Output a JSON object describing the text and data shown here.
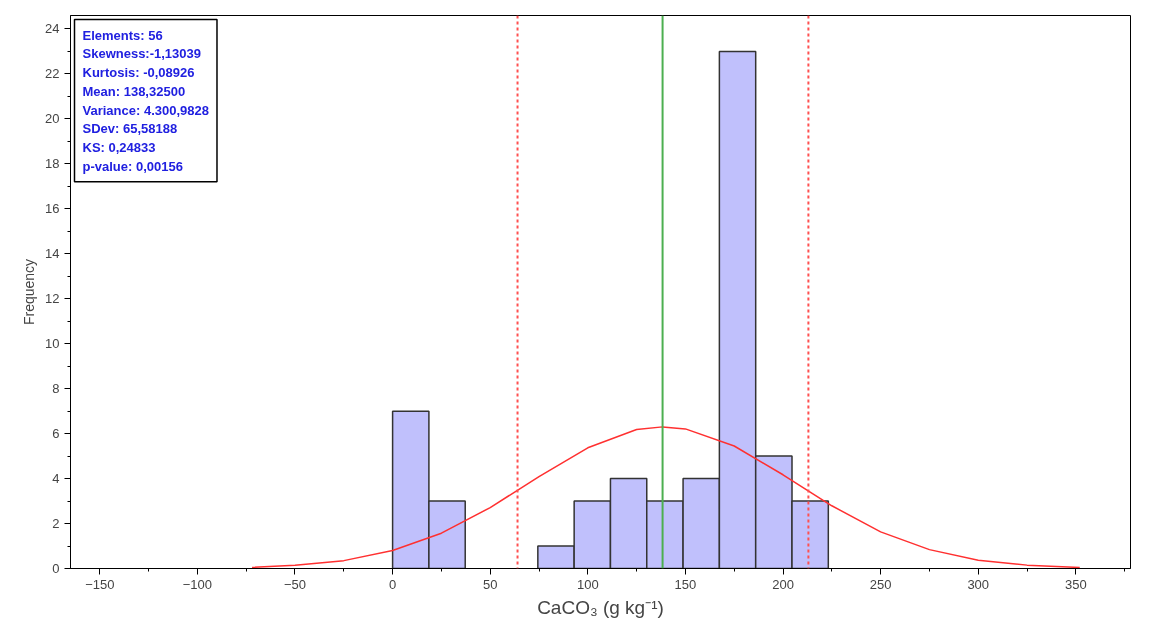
{
  "chart_data": {
    "type": "histogram",
    "xlabel": "CaCO₃ (g kg⁻¹)",
    "ylabel": "Frequency",
    "bins": [
      0,
      18.6,
      37.2,
      55.8,
      74.4,
      93,
      111.6,
      130.2,
      148.8,
      167.4,
      186,
      204.6,
      223.2
    ],
    "values": [
      7,
      3,
      0,
      0,
      1,
      3,
      4,
      3,
      4,
      23,
      5,
      3
    ],
    "color": "#c0c0fc",
    "series": [
      {
        "type": "line",
        "color": "#ff3030",
        "x": [
          -72,
          -50,
          -25,
          0,
          25,
          50,
          75,
          100,
          125,
          138.3,
          150,
          175,
          200,
          225,
          250,
          275,
          300,
          325,
          352
        ],
        "values": [
          0.05,
          0.14,
          0.35,
          0.8,
          1.57,
          2.71,
          4.09,
          5.37,
          6.18,
          6.3,
          6.21,
          5.45,
          4.17,
          2.79,
          1.63,
          0.84,
          0.37,
          0.15,
          0.05
        ]
      }
    ],
    "xlim": [
      -165,
      378
    ],
    "ylim": [
      0,
      24.6
    ],
    "xticks": [
      -150,
      {
        "value": -125,
        "label": null
      },
      -100,
      {
        "value": -75,
        "label": null
      },
      -50,
      {
        "value": -25,
        "label": null
      },
      0,
      {
        "value": 25,
        "label": null
      },
      50,
      {
        "value": 75,
        "label": null
      },
      100,
      {
        "value": 125,
        "label": null
      },
      150,
      {
        "value": 175,
        "label": null
      },
      200,
      {
        "value": 225,
        "label": null
      },
      250,
      {
        "value": 275,
        "label": null
      },
      300,
      {
        "value": 325,
        "label": null
      },
      350,
      {
        "value": 375,
        "label": null
      }
    ],
    "yticks": [
      0,
      {
        "value": 1,
        "label": null
      },
      2,
      {
        "value": 3,
        "label": null
      },
      4,
      {
        "value": 5,
        "label": null
      },
      6,
      {
        "value": 7,
        "label": null
      },
      8,
      {
        "value": 9,
        "label": null
      },
      10,
      {
        "value": 11,
        "label": null
      },
      12,
      {
        "value": 13,
        "label": null
      },
      14,
      {
        "value": 15,
        "label": null
      },
      16,
      {
        "value": 17,
        "label": null
      },
      18,
      {
        "value": 19,
        "label": null
      },
      20,
      {
        "value": 21,
        "label": null
      },
      22,
      {
        "value": 23,
        "label": null
      },
      24
    ],
    "ref_lines": [
      {
        "axis": "x",
        "value": 138.3,
        "color": "#4caf50",
        "line_style": "solid"
      },
      {
        "axis": "x",
        "value": 64,
        "color": "#ff5050",
        "line_style": "dotted"
      },
      {
        "axis": "x",
        "value": 213,
        "color": "#ff5050",
        "line_style": "dotted"
      }
    ],
    "annotations": [
      "Elements: 56",
      "Skewness:-1,13039",
      "Kurtosis: -0,08926",
      "Mean: 138,32500",
      "Variance: 4.300,9828",
      "SDev: 65,58188",
      "KS: 0,24833",
      "p-value: 0,00156"
    ],
    "grid": false
  }
}
